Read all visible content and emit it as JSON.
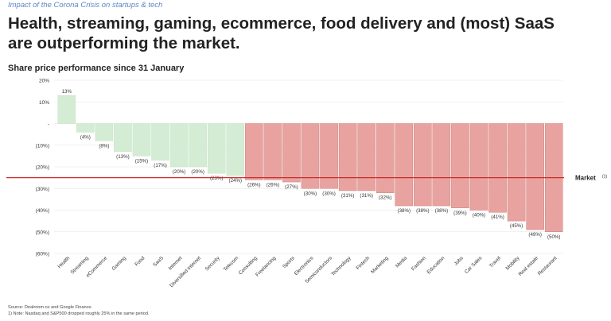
{
  "header": {
    "kicker": "Impact of the Corona Crisis on startups & tech",
    "title": "Health, streaming, gaming, ecommerce, food delivery and (most) SaaS are outperforming the market.",
    "subtitle": "Share price performance since 31 January"
  },
  "footer": {
    "source": "Source: Dealroom.co and Google Finance.",
    "note": "1) Note: Nasdaq and S&P500 dropped roughly 25% in the same period."
  },
  "colors": {
    "positive_fill": "#d5ecd4",
    "negative_fill": "#e8a3a0",
    "positive_stroke": "#bfe0be",
    "negative_stroke": "#c9706c",
    "market_line": "#cc2a2a",
    "grid": "#e3e3e3"
  },
  "chart_data": {
    "type": "bar",
    "categories": [
      "Health",
      "Streaming",
      "eCommerce",
      "Gaming",
      "Food",
      "SaaS",
      "Internet",
      "Diversified internet",
      "Security",
      "Telecom",
      "Consulting",
      "Freelancing",
      "Sports",
      "Electronics",
      "Semiconductors",
      "Technology",
      "Fintech",
      "Marketing",
      "Media",
      "Fashion",
      "Education",
      "Jobs",
      "Car Sales",
      "Travel",
      "Mobility",
      "Real estate",
      "Restaurant"
    ],
    "values": [
      13,
      -4,
      -8,
      -13,
      -15,
      -17,
      -20,
      -20,
      -23,
      -24,
      -26,
      -26,
      -27,
      -30,
      -30,
      -31,
      -31,
      -32,
      -38,
      -38,
      -38,
      -39,
      -40,
      -41,
      -45,
      -49,
      -50
    ],
    "data_labels": [
      "13%",
      "(4%)",
      "(8%)",
      "(13%)",
      "(15%)",
      "(17%)",
      "(20%)",
      "(20%)",
      "(23%)",
      "(24%)",
      "(26%)",
      "(26%)",
      "(27%)",
      "(30%)",
      "(30%)",
      "(31%)",
      "(31%)",
      "(32%)",
      "(38%)",
      "(38%)",
      "(38%)",
      "(39%)",
      "(40%)",
      "(41%)",
      "(45%)",
      "(49%)",
      "(50%)"
    ],
    "bar_color_groups": [
      "green",
      "green",
      "green",
      "green",
      "green",
      "green",
      "green",
      "green",
      "green",
      "green",
      "red",
      "red",
      "red",
      "red",
      "red",
      "red",
      "red",
      "red",
      "red",
      "red",
      "red",
      "red",
      "red",
      "red",
      "red",
      "red",
      "red"
    ],
    "yticks": [
      20,
      10,
      0,
      -10,
      -20,
      -30,
      -40,
      -50,
      -60
    ],
    "ytick_labels": [
      "20%",
      "10%",
      "-",
      "(10%)",
      "(20%)",
      "(30%)",
      "(40%)",
      "(50%)",
      "(60%)"
    ],
    "ylim": [
      -60,
      20
    ],
    "reference_line": {
      "value": -25,
      "label": "Market",
      "superscript": "(1)"
    },
    "title": "Share price performance since 31 January",
    "xlabel": "",
    "ylabel": "",
    "grid": true,
    "legend": "none"
  }
}
